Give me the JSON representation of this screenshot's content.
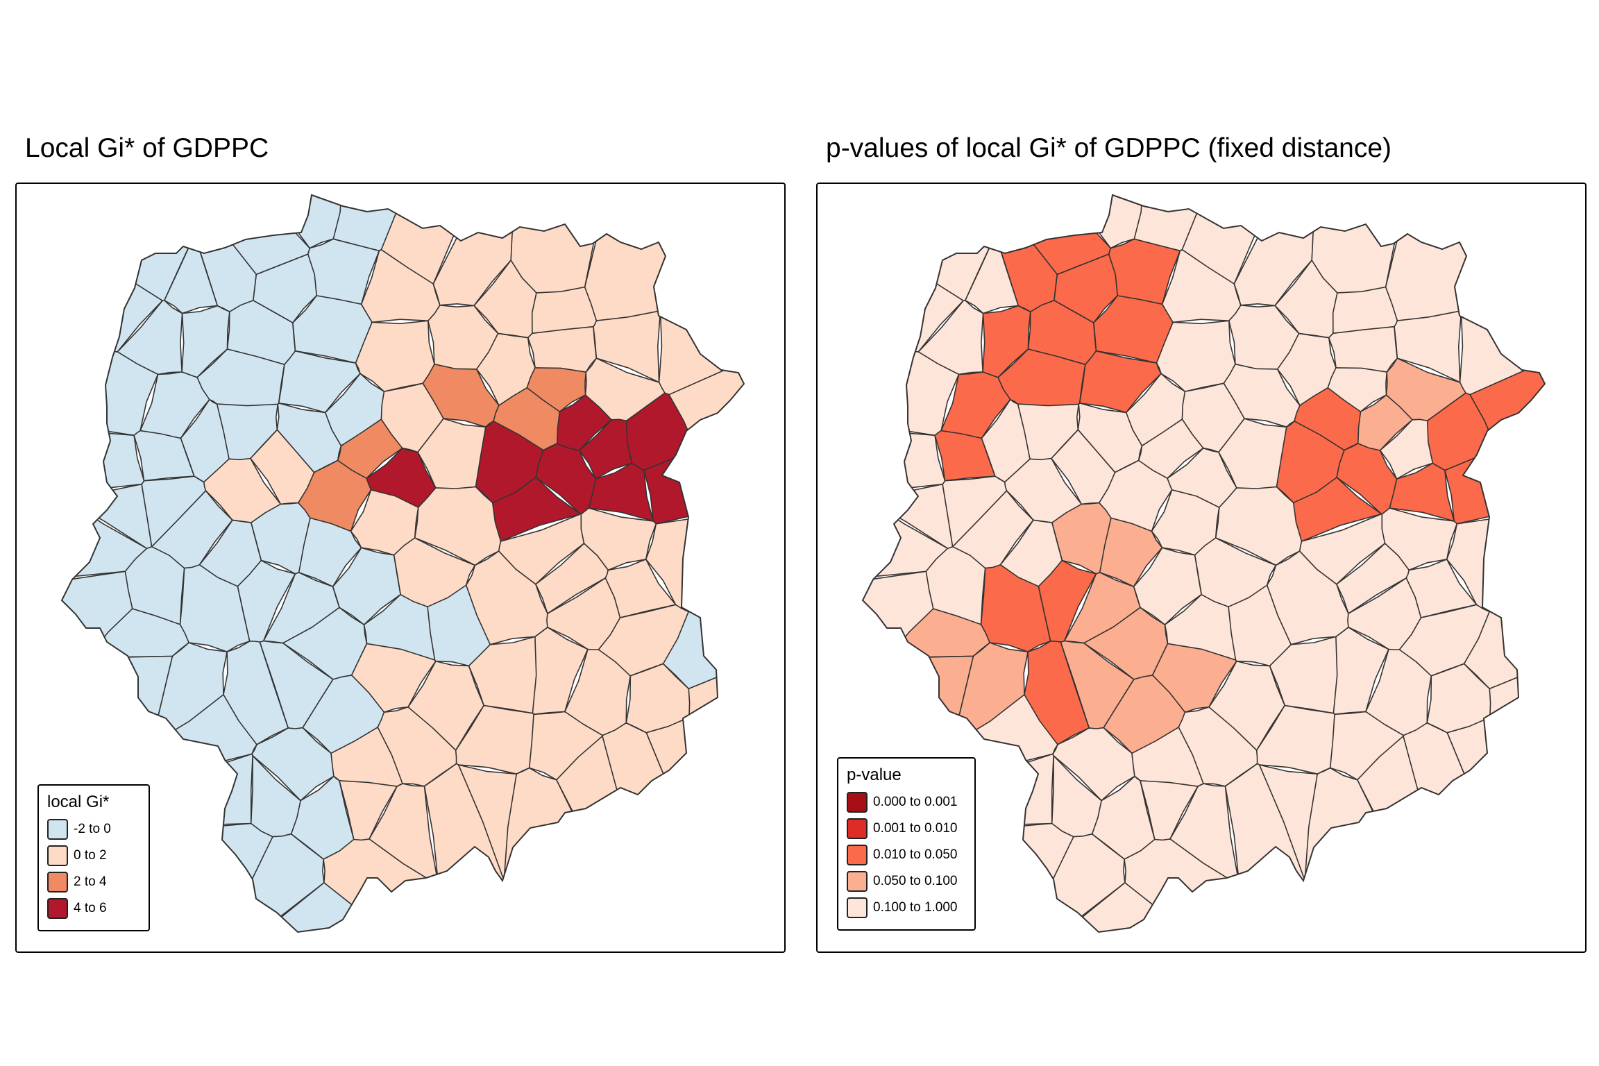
{
  "panels": [
    {
      "id": "gi",
      "title": "Local Gi* of GDPPC",
      "legend": {
        "title": "local Gi*",
        "classes": [
          {
            "label": "-2 to 0",
            "color": "#d1e5f0"
          },
          {
            "label": "0 to 2",
            "color": "#fddbc7"
          },
          {
            "label": "2 to 4",
            "color": "#ef8a62"
          },
          {
            "label": "4 to 6",
            "color": "#b2182b"
          }
        ]
      }
    },
    {
      "id": "pval",
      "title": "p-values of local Gi* of GDPPC (fixed distance)",
      "legend": {
        "title": "p-value",
        "classes": [
          {
            "label": "0.000 to 0.001",
            "color": "#a50f15"
          },
          {
            "label": "0.001 to 0.010",
            "color": "#de2d26"
          },
          {
            "label": "0.010 to 0.050",
            "color": "#fb6a4a"
          },
          {
            "label": "0.050 to 0.100",
            "color": "#fcae91"
          },
          {
            "label": "0.100 to 1.000",
            "color": "#fee5d9"
          }
        ]
      }
    }
  ],
  "border_color": "#333333"
}
